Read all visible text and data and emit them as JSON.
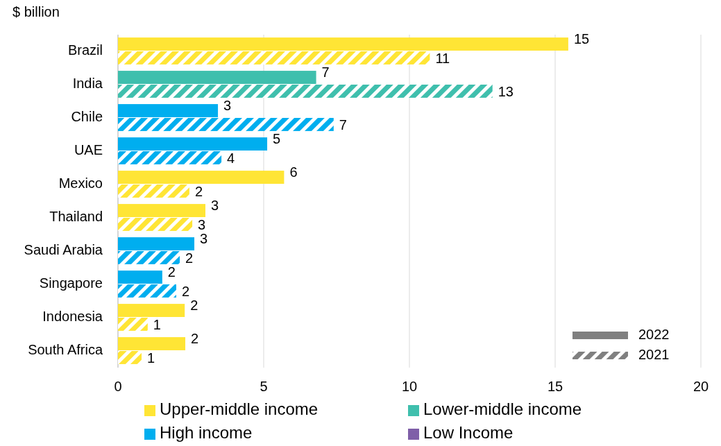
{
  "chart_data": {
    "type": "bar",
    "orientation": "horizontal",
    "ylabel": "$ billion",
    "categories": [
      "Brazil",
      "India",
      "Chile",
      "UAE",
      "Mexico",
      "Thailand",
      "Saudi Arabia",
      "Singapore",
      "Indonesia",
      "South Africa"
    ],
    "series": [
      {
        "name": "2022",
        "color": "#808080",
        "colors": [
          "#ffe535",
          "#3fbfad",
          "#00aeef",
          "#00aeef",
          "#ffe535",
          "#ffe535",
          "#00aeef",
          "#00aeef",
          "#ffe535",
          "#ffe535"
        ],
        "values": [
          15.45,
          6.8,
          3.43,
          5.12,
          5.7,
          3.0,
          2.62,
          1.52,
          2.29,
          2.31
        ],
        "value_labels": [
          "15",
          "7",
          "3",
          "5",
          "6",
          "3",
          "3",
          "2",
          "2",
          "2"
        ]
      },
      {
        "name": "2021",
        "color": "#808080",
        "colors": [
          "#ffe535",
          "#3fbfad",
          "#00aeef",
          "#00aeef",
          "#ffe535",
          "#ffe535",
          "#00aeef",
          "#00aeef",
          "#ffe535",
          "#ffe535"
        ],
        "values": [
          10.7,
          12.85,
          7.4,
          3.55,
          2.45,
          2.55,
          2.12,
          2.0,
          1.02,
          0.81
        ],
        "value_labels": [
          "11",
          "13",
          "7",
          "4",
          "2",
          "3",
          "2",
          "2",
          "1",
          "1"
        ]
      },
      {
        "name": "Upper-middle income",
        "color": "#ffe535",
        "values": [
          null,
          null,
          null,
          null,
          null,
          null,
          null,
          null,
          null,
          null
        ]
      },
      {
        "name": "Lower-middle income",
        "color": "#3fbfad",
        "values": [
          null,
          null,
          null,
          null,
          null,
          null,
          null,
          null,
          null,
          null
        ]
      },
      {
        "name": "High income",
        "color": "#00aeef",
        "values": [
          null,
          null,
          null,
          null,
          null,
          null,
          null,
          null,
          null,
          null
        ]
      },
      {
        "name": "Low Income",
        "color": "#7f5fa8",
        "values": [
          null,
          null,
          null,
          null,
          null,
          null,
          null,
          null,
          null,
          null
        ]
      }
    ],
    "xlim": [
      0,
      20
    ],
    "xticks": [
      0,
      5,
      10,
      15,
      20
    ],
    "grid": "x",
    "legend": "bottom"
  }
}
